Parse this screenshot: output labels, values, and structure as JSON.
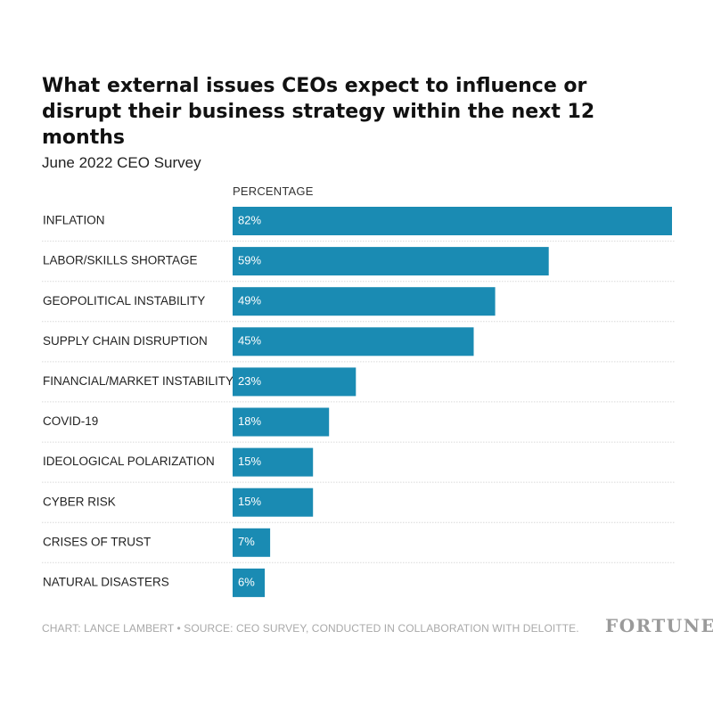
{
  "title": "What external issues CEOs expect to influence or disrupt their business strategy within the next 12 months",
  "subtitle": "June 2022 CEO Survey",
  "footer": {
    "credit": "CHART: LANCE LAMBERT • SOURCE: CEO SURVEY, CONDUCTED IN COLLABORATION WITH DELOITTE.",
    "logo": "FORTUNE"
  },
  "colors": {
    "bar": "#1a8bb3",
    "bar_label": "#ffffff",
    "category_label": "#222222",
    "separator": "#d9d9d9"
  },
  "chart_data": {
    "type": "bar",
    "orientation": "horizontal",
    "title": "What external issues CEOs expect to influence or disrupt their business strategy within the next 12 months",
    "subtitle": "June 2022 CEO Survey",
    "value_header": "PERCENTAGE",
    "categories": [
      "INFLATION",
      "LABOR/SKILLS SHORTAGE",
      "GEOPOLITICAL INSTABILITY",
      "SUPPLY CHAIN DISRUPTION",
      "FINANCIAL/MARKET INSTABILITY",
      "COVID-19",
      "IDEOLOGICAL POLARIZATION",
      "CYBER RISK",
      "CRISES OF TRUST",
      "NATURAL DISASTERS"
    ],
    "values": [
      82,
      59,
      49,
      45,
      23,
      18,
      15,
      15,
      7,
      6
    ],
    "data_labels": [
      "82%",
      "59%",
      "49%",
      "45%",
      "23%",
      "18%",
      "15%",
      "15%",
      "7%",
      "6%"
    ],
    "unit": "%",
    "xlim": [
      0,
      82
    ],
    "grid": false,
    "legend": "none"
  }
}
